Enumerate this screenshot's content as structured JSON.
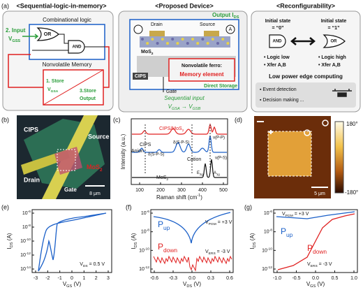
{
  "a": {
    "label": "(a)",
    "left": {
      "title": "<Sequential-logic-in-memory>",
      "logic": "Combinational logic",
      "or": "OR",
      "and": "AND",
      "input": "2. Input",
      "input_v": {
        "text": "V",
        "sub": "GSS"
      },
      "memory": "Nonvolatile Memory",
      "store": "1. Store",
      "store_v": {
        "text": "V",
        "sub": "GSA"
      },
      "store_out1": "3.Store",
      "store_out2": "Output"
    },
    "middle": {
      "title": "<Proposed Device>",
      "output": {
        "text": "Output I",
        "sub": "DS"
      },
      "drain": "Drain",
      "source": "Source",
      "ammeter": "A",
      "mos2": {
        "text": "MoS",
        "sub": "2"
      },
      "cips": "CIPS",
      "ferro": "Nonvolatile ferro:",
      "element": "Memory element",
      "gate": "Gate",
      "direct": "Direct Storage",
      "seq": "Sequential input",
      "seq_v": {
        "text": "V",
        "sub": "GSA",
        "rest": " → V",
        "sub2": "GSB"
      }
    },
    "right": {
      "title": "<Reconfigurability>",
      "state0_1": "Initial state",
      "state0_2": "= “0”",
      "state1_1": "Initial state",
      "state1_2": "= “1”",
      "and": "AND",
      "or": "OR",
      "l0a": "• Logic low",
      "l0b": "• Xfer A,B",
      "l1a": "• Logic high",
      "l1b": "• Xfer A,B",
      "edge": "Low power edge computing",
      "ev1": "▪ Event detection",
      "ev2": "▪ Decision making ..."
    }
  },
  "b": {
    "label": "(b)",
    "cips": "CIPS",
    "source": "Source",
    "mos2": {
      "text": "MoS",
      "sub": "2"
    },
    "drain": "Drain",
    "gate": "Gate",
    "scale": "8 μm"
  },
  "c": {
    "label": "(c)",
    "top": {
      "text": "CIPS/MoS",
      "sub": "2"
    },
    "cips": "CIPS",
    "anion": "Anion",
    "d1": "δ(S-P-S)",
    "d2": "δ(S-P-S)",
    "cation": "Cation",
    "vpp": "ν(P-P)",
    "vps": "ν(P-S)",
    "mos2": {
      "text": "MoS",
      "sub": "2"
    },
    "e2g": {
      "text": "E",
      "sub": "2g"
    },
    "a1g": {
      "text": "A",
      "sub": "1g"
    },
    "ylabel": "Intensity (a.u.)",
    "xlabel": {
      "text": "Raman shift (cm",
      "sup": "-1",
      "rest": ")"
    },
    "xticks": [
      "100",
      "200",
      "300",
      "400",
      "500"
    ]
  },
  "d": {
    "label": "(d)",
    "cbar_max": "180°",
    "cbar_min": "-180°",
    "scale": "5 μm"
  },
  "e": {
    "label": "(e)",
    "ylabel": {
      "text": "I",
      "sub": "DS",
      "rest": " (A)"
    },
    "xlabel": {
      "text": "V",
      "sub": "GS",
      "rest": " (V)"
    },
    "ytick_base": "10",
    "ytick_exps": [
      "-6",
      "-8",
      "-10",
      "-12",
      "-14"
    ],
    "xticks": [
      "-3",
      "-2",
      "-1",
      "0",
      "1",
      "2",
      "3"
    ],
    "note": {
      "text": "V",
      "sub": "DS",
      "rest": " = 0.5 V"
    }
  },
  "f": {
    "label": "(f)",
    "ylabel": {
      "text": "I",
      "sub": "DS",
      "rest": " (A)"
    },
    "xlabel": {
      "text": "V",
      "sub": "DS",
      "rest": " (V)"
    },
    "ytick_base": "10",
    "ytick_exps": [
      "-6",
      "-8",
      "-10",
      "-12"
    ],
    "xticks": [
      "-0.6",
      "-0.3",
      "0.0",
      "0.3",
      "0.6"
    ],
    "pup": {
      "text": "P",
      "sub": "up"
    },
    "pdown": {
      "text": "P",
      "sub": "down"
    },
    "vpgm": {
      "text": "V",
      "sub": "PGM",
      "rest": " = +3 V"
    },
    "vers": {
      "text": "V",
      "sub": "ERS",
      "rest": " = -3 V"
    }
  },
  "g": {
    "label": "(g)",
    "ylabel": {
      "text": "I",
      "sub": "DS",
      "rest": " (A)"
    },
    "xlabel": {
      "text": "V",
      "sub": "GS",
      "rest": " (V)"
    },
    "ytick_base": "10",
    "ytick_exps": [
      "-6",
      "-8",
      "-10",
      "-12"
    ],
    "xticks": [
      "-1.0",
      "-0.5",
      "0.0",
      "0.5",
      "1.0"
    ],
    "pup": {
      "text": "P",
      "sub": "up"
    },
    "pdown": {
      "text": "P",
      "sub": "down"
    },
    "vpgm": {
      "text": "V",
      "sub": "PGM",
      "rest": " = +3 V"
    },
    "vers": {
      "text": "V",
      "sub": "ERS",
      "rest": " = -3 V"
    }
  }
}
